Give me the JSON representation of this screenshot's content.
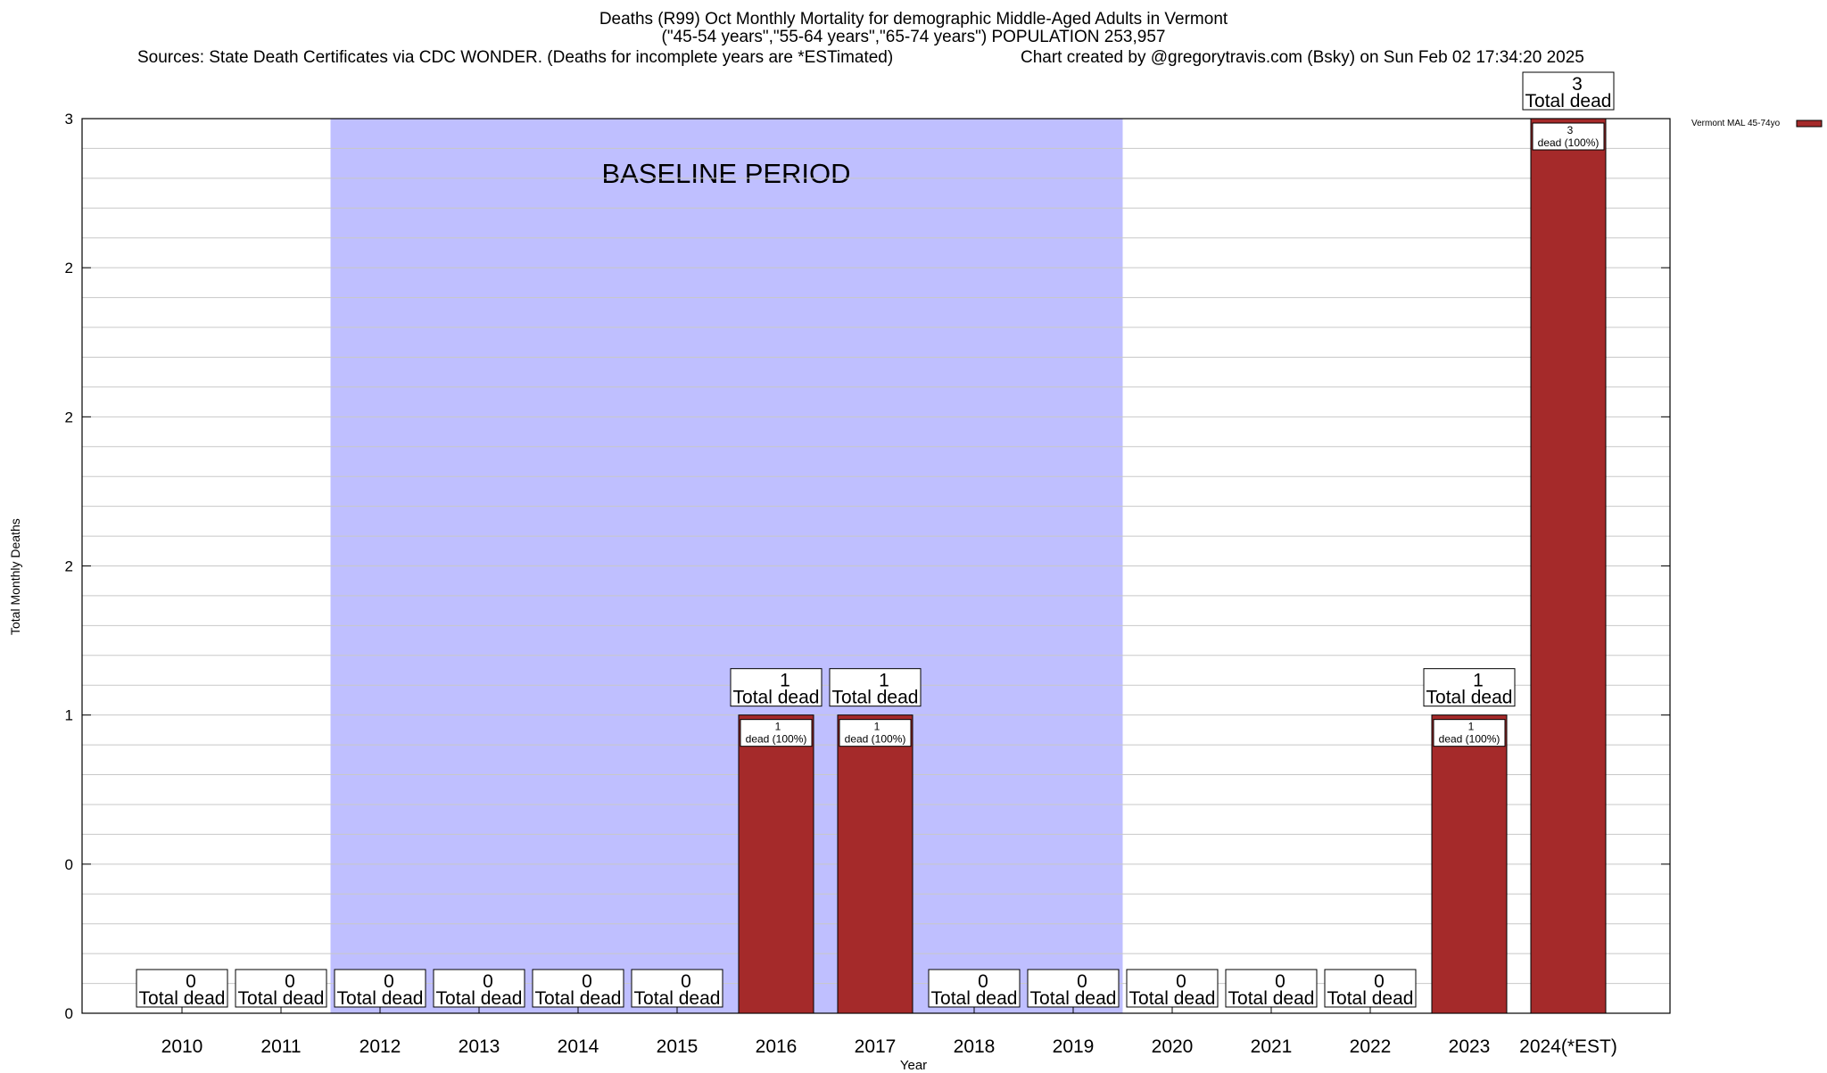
{
  "title": {
    "line1": "Deaths (R99) Oct Monthly Mortality for demographic Middle-Aged Adults in Vermont",
    "line2": "(\"45-54 years\",\"55-64 years\",\"65-74 years\") POPULATION 253,957",
    "sources": "Sources: State Death Certificates via CDC WONDER. (Deaths for incomplete years are *ESTimated)",
    "credit": "Chart created by @gregorytravis.com (Bsky) on Sun Feb 02 17:34:20 2025"
  },
  "chart_data": {
    "type": "bar",
    "xlabel": "Year",
    "ylabel": "Total Monthly Deaths",
    "ylim": [
      0,
      3
    ],
    "y_tick_labels": [
      "0",
      "0",
      "1",
      "2",
      "2",
      "2",
      "3"
    ],
    "categories": [
      "2010",
      "2011",
      "2012",
      "2013",
      "2014",
      "2015",
      "2016",
      "2017",
      "2018",
      "2019",
      "2020",
      "2021",
      "2022",
      "2023",
      "2024(*EST)"
    ],
    "series": [
      {
        "name": "Vermont MAL 45-74yo",
        "color": "#a52a2a",
        "values": [
          0,
          0,
          0,
          0,
          0,
          0,
          1,
          1,
          0,
          0,
          0,
          0,
          0,
          1,
          3
        ]
      }
    ],
    "total_label_suffix": "Total dead",
    "inner_labels": [
      {
        "category": "2016",
        "count": "1",
        "text": "dead (100%)"
      },
      {
        "category": "2017",
        "count": "1",
        "text": "dead (100%)"
      },
      {
        "category": "2023",
        "count": "1",
        "text": "dead (100%)"
      },
      {
        "category": "2024(*EST)",
        "count": "3",
        "text": "dead (100%)"
      }
    ],
    "baseline": {
      "label": "BASELINE PERIOD",
      "start": "2012",
      "end": "2019",
      "color": "#bfbfff"
    },
    "grid": true,
    "legend_position": "top-right"
  }
}
